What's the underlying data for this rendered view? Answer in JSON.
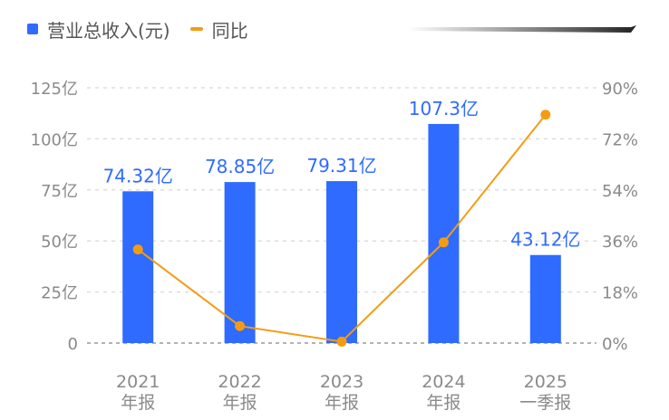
{
  "legend": {
    "bar_label": "营业总收入(元)",
    "line_label": "同比"
  },
  "colors": {
    "bar": "#2f6bff",
    "line": "#f39c12",
    "axis_text": "#8a8a8a",
    "bar_label": "#2f6bff",
    "grid": "#dddddd",
    "baseline": "#9a9a9a"
  },
  "chart_data": {
    "type": "bar",
    "categories": [
      [
        "2021",
        "年报"
      ],
      [
        "2022",
        "年报"
      ],
      [
        "2023",
        "年报"
      ],
      [
        "2024",
        "年报"
      ],
      [
        "2025",
        "一季报"
      ]
    ],
    "series": [
      {
        "name": "营业总收入(元)",
        "type": "bar",
        "axis": "left",
        "values": [
          74.32,
          78.85,
          79.31,
          107.3,
          43.12
        ],
        "labels": [
          "74.32亿",
          "78.85亿",
          "79.31亿",
          "107.3亿",
          "43.12亿"
        ]
      },
      {
        "name": "同比",
        "type": "line",
        "axis": "right",
        "values": [
          33,
          6,
          0.5,
          35.5,
          80.5
        ]
      }
    ],
    "left_axis": {
      "range": [
        0,
        125
      ],
      "ticks": [
        0,
        25,
        50,
        75,
        100,
        125
      ],
      "tick_labels": [
        "0",
        "25亿",
        "50亿",
        "75亿",
        "100亿",
        "125亿"
      ]
    },
    "right_axis": {
      "range": [
        0,
        90
      ],
      "ticks": [
        0,
        18,
        36,
        54,
        72,
        90
      ],
      "tick_labels": [
        "0%",
        "18%",
        "36%",
        "54%",
        "72%",
        "90%"
      ]
    },
    "grid": true,
    "legend_position": "top-left"
  }
}
